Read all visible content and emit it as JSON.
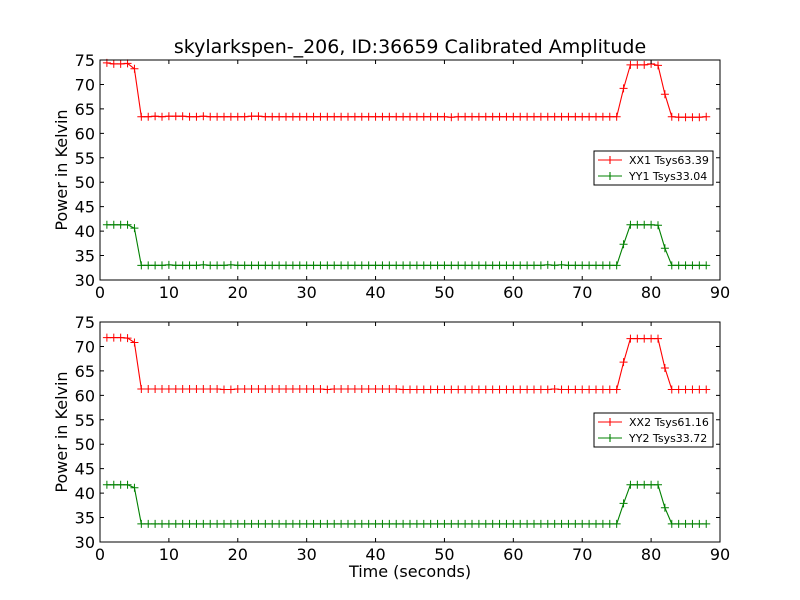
{
  "title": "skylarkspen-_206, ID:36659 Calibrated Amplitude",
  "chart_data": [
    {
      "type": "line",
      "panel": "top",
      "xlabel": "",
      "ylabel": "Power in Kelvin",
      "xlim": [
        0,
        90
      ],
      "ylim": [
        30,
        75
      ],
      "xticks": [
        0,
        10,
        20,
        30,
        40,
        50,
        60,
        70,
        80,
        90
      ],
      "yticks": [
        30,
        35,
        40,
        45,
        50,
        55,
        60,
        65,
        70,
        75
      ],
      "legend_position": "center-right",
      "marker": "plus",
      "series": [
        {
          "name": "XX1 Tsys63.39",
          "color": "#ff0000",
          "x": [
            1,
            2,
            3,
            4,
            5,
            6,
            7,
            8,
            9,
            10,
            11,
            12,
            13,
            14,
            15,
            16,
            17,
            18,
            19,
            20,
            21,
            22,
            23,
            24,
            25,
            26,
            27,
            28,
            29,
            30,
            31,
            32,
            33,
            34,
            35,
            36,
            37,
            38,
            39,
            40,
            41,
            42,
            43,
            44,
            45,
            46,
            47,
            48,
            49,
            50,
            51,
            52,
            53,
            54,
            55,
            56,
            57,
            58,
            59,
            60,
            61,
            62,
            63,
            64,
            65,
            66,
            67,
            68,
            69,
            70,
            71,
            72,
            73,
            74,
            75,
            76,
            77,
            78,
            79,
            80,
            81,
            82,
            83,
            84,
            85,
            86,
            87,
            88
          ],
          "y": [
            74.4,
            74.2,
            74.2,
            74.3,
            73.2,
            63.4,
            63.4,
            63.5,
            63.4,
            63.5,
            63.5,
            63.5,
            63.4,
            63.4,
            63.5,
            63.4,
            63.4,
            63.4,
            63.4,
            63.4,
            63.4,
            63.5,
            63.5,
            63.4,
            63.4,
            63.4,
            63.4,
            63.4,
            63.4,
            63.4,
            63.4,
            63.4,
            63.4,
            63.4,
            63.4,
            63.4,
            63.4,
            63.4,
            63.4,
            63.4,
            63.4,
            63.4,
            63.4,
            63.4,
            63.4,
            63.4,
            63.4,
            63.4,
            63.4,
            63.4,
            63.3,
            63.4,
            63.4,
            63.4,
            63.4,
            63.4,
            63.4,
            63.4,
            63.4,
            63.4,
            63.4,
            63.4,
            63.4,
            63.4,
            63.4,
            63.4,
            63.4,
            63.4,
            63.4,
            63.4,
            63.4,
            63.4,
            63.4,
            63.4,
            63.4,
            69.2,
            74.0,
            74.0,
            74.0,
            74.2,
            73.9,
            68.0,
            63.4,
            63.3,
            63.3,
            63.3,
            63.3,
            63.4
          ]
        },
        {
          "name": "YY1 Tsys33.04",
          "color": "#008000",
          "x": [
            1,
            2,
            3,
            4,
            5,
            6,
            7,
            8,
            9,
            10,
            11,
            12,
            13,
            14,
            15,
            16,
            17,
            18,
            19,
            20,
            21,
            22,
            23,
            24,
            25,
            26,
            27,
            28,
            29,
            30,
            31,
            32,
            33,
            34,
            35,
            36,
            37,
            38,
            39,
            40,
            41,
            42,
            43,
            44,
            45,
            46,
            47,
            48,
            49,
            50,
            51,
            52,
            53,
            54,
            55,
            56,
            57,
            58,
            59,
            60,
            61,
            62,
            63,
            64,
            65,
            66,
            67,
            68,
            69,
            70,
            71,
            72,
            73,
            74,
            75,
            76,
            77,
            78,
            79,
            80,
            81,
            82,
            83,
            84,
            85,
            86,
            87,
            88
          ],
          "y": [
            41.3,
            41.3,
            41.3,
            41.3,
            40.6,
            33.0,
            33.0,
            33.0,
            33.0,
            33.1,
            33.0,
            33.0,
            33.0,
            33.0,
            33.1,
            33.0,
            33.0,
            33.0,
            33.1,
            33.0,
            33.0,
            33.0,
            33.0,
            33.0,
            33.0,
            33.0,
            33.0,
            33.0,
            33.0,
            33.0,
            33.0,
            33.0,
            33.0,
            33.0,
            33.0,
            33.0,
            33.0,
            33.0,
            33.0,
            33.0,
            33.0,
            33.0,
            33.0,
            33.0,
            33.0,
            33.0,
            33.0,
            33.0,
            33.0,
            33.0,
            33.0,
            33.0,
            33.0,
            33.0,
            33.0,
            33.0,
            33.0,
            33.0,
            33.0,
            33.0,
            33.0,
            33.0,
            33.0,
            33.0,
            33.1,
            33.0,
            33.1,
            33.0,
            33.0,
            33.0,
            33.0,
            33.0,
            33.0,
            33.0,
            33.0,
            37.3,
            41.3,
            41.3,
            41.3,
            41.3,
            41.2,
            36.5,
            33.0,
            33.0,
            33.0,
            33.0,
            33.0,
            33.0
          ]
        }
      ]
    },
    {
      "type": "line",
      "panel": "bottom",
      "xlabel": "Time (seconds)",
      "ylabel": "Power in Kelvin",
      "xlim": [
        0,
        90
      ],
      "ylim": [
        30,
        75
      ],
      "xticks": [
        0,
        10,
        20,
        30,
        40,
        50,
        60,
        70,
        80,
        90
      ],
      "yticks": [
        30,
        35,
        40,
        45,
        50,
        55,
        60,
        65,
        70,
        75
      ],
      "legend_position": "center-right",
      "marker": "plus",
      "series": [
        {
          "name": "XX2 Tsys61.16",
          "color": "#ff0000",
          "x": [
            1,
            2,
            3,
            4,
            5,
            6,
            7,
            8,
            9,
            10,
            11,
            12,
            13,
            14,
            15,
            16,
            17,
            18,
            19,
            20,
            21,
            22,
            23,
            24,
            25,
            26,
            27,
            28,
            29,
            30,
            31,
            32,
            33,
            34,
            35,
            36,
            37,
            38,
            39,
            40,
            41,
            42,
            43,
            44,
            45,
            46,
            47,
            48,
            49,
            50,
            51,
            52,
            53,
            54,
            55,
            56,
            57,
            58,
            59,
            60,
            61,
            62,
            63,
            64,
            65,
            66,
            67,
            68,
            69,
            70,
            71,
            72,
            73,
            74,
            75,
            76,
            77,
            78,
            79,
            80,
            81,
            82,
            83,
            84,
            85,
            86,
            87,
            88
          ],
          "y": [
            71.8,
            71.8,
            71.8,
            71.7,
            70.8,
            61.3,
            61.3,
            61.3,
            61.3,
            61.3,
            61.3,
            61.3,
            61.3,
            61.3,
            61.3,
            61.3,
            61.3,
            61.2,
            61.2,
            61.3,
            61.3,
            61.3,
            61.3,
            61.3,
            61.3,
            61.3,
            61.3,
            61.3,
            61.3,
            61.3,
            61.3,
            61.3,
            61.2,
            61.3,
            61.3,
            61.3,
            61.3,
            61.3,
            61.3,
            61.3,
            61.3,
            61.3,
            61.3,
            61.2,
            61.2,
            61.2,
            61.2,
            61.2,
            61.2,
            61.2,
            61.2,
            61.2,
            61.2,
            61.2,
            61.2,
            61.2,
            61.2,
            61.2,
            61.2,
            61.2,
            61.2,
            61.2,
            61.2,
            61.2,
            61.2,
            61.3,
            61.2,
            61.2,
            61.2,
            61.2,
            61.2,
            61.2,
            61.2,
            61.2,
            61.2,
            66.8,
            71.6,
            71.6,
            71.6,
            71.6,
            71.6,
            65.6,
            61.2,
            61.2,
            61.2,
            61.2,
            61.2,
            61.2
          ]
        },
        {
          "name": "YY2 Tsys33.72",
          "color": "#008000",
          "x": [
            1,
            2,
            3,
            4,
            5,
            6,
            7,
            8,
            9,
            10,
            11,
            12,
            13,
            14,
            15,
            16,
            17,
            18,
            19,
            20,
            21,
            22,
            23,
            24,
            25,
            26,
            27,
            28,
            29,
            30,
            31,
            32,
            33,
            34,
            35,
            36,
            37,
            38,
            39,
            40,
            41,
            42,
            43,
            44,
            45,
            46,
            47,
            48,
            49,
            50,
            51,
            52,
            53,
            54,
            55,
            56,
            57,
            58,
            59,
            60,
            61,
            62,
            63,
            64,
            65,
            66,
            67,
            68,
            69,
            70,
            71,
            72,
            73,
            74,
            75,
            76,
            77,
            78,
            79,
            80,
            81,
            82,
            83,
            84,
            85,
            86,
            87,
            88
          ],
          "y": [
            41.7,
            41.7,
            41.7,
            41.7,
            41.1,
            33.7,
            33.7,
            33.7,
            33.7,
            33.7,
            33.7,
            33.7,
            33.7,
            33.7,
            33.7,
            33.7,
            33.7,
            33.7,
            33.7,
            33.7,
            33.7,
            33.7,
            33.7,
            33.7,
            33.7,
            33.7,
            33.7,
            33.7,
            33.7,
            33.7,
            33.7,
            33.7,
            33.7,
            33.7,
            33.7,
            33.7,
            33.7,
            33.7,
            33.7,
            33.7,
            33.7,
            33.7,
            33.7,
            33.7,
            33.7,
            33.7,
            33.7,
            33.7,
            33.7,
            33.7,
            33.7,
            33.7,
            33.7,
            33.7,
            33.7,
            33.7,
            33.7,
            33.7,
            33.7,
            33.7,
            33.7,
            33.7,
            33.7,
            33.7,
            33.7,
            33.7,
            33.7,
            33.7,
            33.7,
            33.7,
            33.7,
            33.7,
            33.7,
            33.7,
            33.7,
            37.9,
            41.7,
            41.7,
            41.7,
            41.7,
            41.7,
            37.0,
            33.7,
            33.7,
            33.7,
            33.7,
            33.7,
            33.7
          ]
        }
      ]
    }
  ]
}
